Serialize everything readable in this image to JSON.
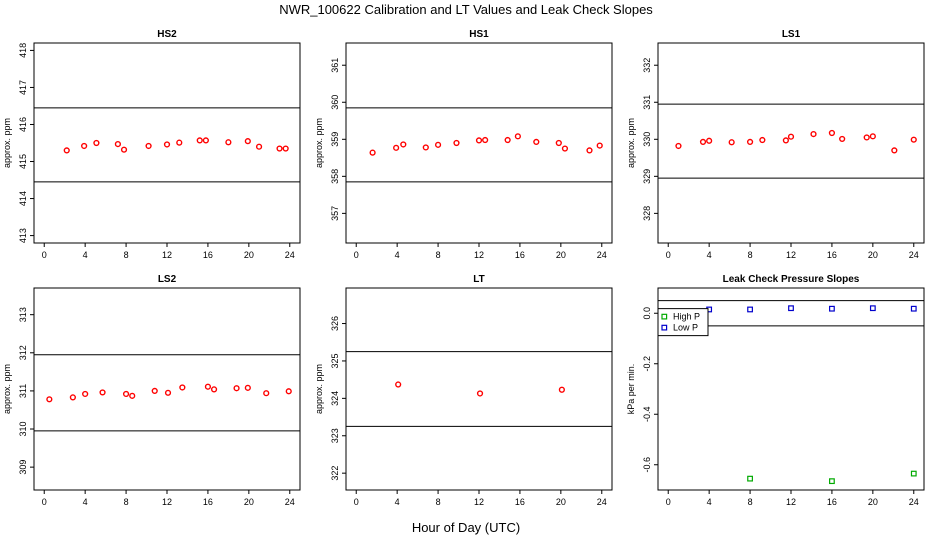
{
  "figure": {
    "title": "NWR_100622  Calibration and LT Values and Leak Check Slopes",
    "xlabel": "Hour of Day (UTC)"
  },
  "chart_data": [
    {
      "type": "scatter",
      "title": "HS2",
      "ylabel": "approx. ppm",
      "xlim": [
        -1,
        25
      ],
      "ylim": [
        412.8,
        418.2
      ],
      "xticks": [
        0,
        4,
        8,
        12,
        16,
        20,
        24
      ],
      "yticks": [
        413,
        414,
        415,
        416,
        417,
        418
      ],
      "hlines": [
        416.45,
        414.45
      ],
      "series": [
        {
          "color": "#ff0000",
          "marker": "circle",
          "x": [
            2.2,
            3.9,
            5.1,
            7.2,
            7.8,
            10.2,
            12.0,
            13.2,
            15.2,
            15.8,
            18.0,
            19.9,
            21.0,
            23.0,
            23.6
          ],
          "y": [
            415.3,
            415.42,
            415.5,
            415.47,
            415.32,
            415.42,
            415.46,
            415.51,
            415.57,
            415.57,
            415.52,
            415.55,
            415.4,
            415.35,
            415.35
          ]
        }
      ]
    },
    {
      "type": "scatter",
      "title": "HS1",
      "ylabel": "approx. ppm",
      "xlim": [
        -1,
        25
      ],
      "ylim": [
        356.2,
        361.6
      ],
      "xticks": [
        0,
        4,
        8,
        12,
        16,
        20,
        24
      ],
      "yticks": [
        357,
        358,
        359,
        360,
        361
      ],
      "hlines": [
        359.85,
        357.85
      ],
      "series": [
        {
          "color": "#ff0000",
          "marker": "circle",
          "x": [
            1.6,
            3.9,
            4.6,
            6.8,
            8.0,
            9.8,
            12.0,
            12.6,
            14.8,
            15.8,
            17.6,
            19.8,
            20.4,
            22.8,
            23.8
          ],
          "y": [
            358.64,
            358.77,
            358.86,
            358.78,
            358.85,
            358.9,
            358.97,
            358.98,
            358.98,
            359.08,
            358.93,
            358.9,
            358.75,
            358.7,
            358.83
          ]
        }
      ]
    },
    {
      "type": "scatter",
      "title": "LS1",
      "ylabel": "approx. ppm",
      "xlim": [
        -1,
        25
      ],
      "ylim": [
        327.2,
        332.6
      ],
      "xticks": [
        0,
        4,
        8,
        12,
        16,
        20,
        24
      ],
      "yticks": [
        328,
        329,
        330,
        331,
        332
      ],
      "hlines": [
        330.95,
        328.95
      ],
      "series": [
        {
          "color": "#ff0000",
          "marker": "circle",
          "x": [
            1.0,
            3.4,
            4.0,
            6.2,
            8.0,
            9.2,
            11.5,
            12.0,
            14.2,
            16.0,
            17.0,
            19.4,
            20.0,
            22.1,
            24.0
          ],
          "y": [
            329.82,
            329.93,
            329.96,
            329.92,
            329.93,
            329.98,
            329.97,
            330.07,
            330.14,
            330.17,
            330.01,
            330.05,
            330.08,
            329.7,
            329.99
          ]
        }
      ]
    },
    {
      "type": "scatter",
      "title": "LS2",
      "ylabel": "approx. ppm",
      "xlim": [
        -1,
        25
      ],
      "ylim": [
        308.4,
        313.7
      ],
      "xticks": [
        0,
        4,
        8,
        12,
        16,
        20,
        24
      ],
      "yticks": [
        309,
        310,
        311,
        312,
        313
      ],
      "hlines": [
        311.95,
        309.95
      ],
      "series": [
        {
          "color": "#ff0000",
          "marker": "circle",
          "x": [
            0.5,
            2.8,
            4.0,
            5.7,
            8.0,
            8.6,
            10.8,
            12.1,
            13.5,
            16.0,
            16.6,
            18.8,
            19.9,
            21.7,
            23.9
          ],
          "y": [
            310.78,
            310.83,
            310.92,
            310.96,
            310.92,
            310.87,
            311.0,
            310.95,
            311.09,
            311.11,
            311.04,
            311.07,
            311.08,
            310.94,
            310.99
          ]
        }
      ]
    },
    {
      "type": "scatter",
      "title": "LT",
      "ylabel": "approx. ppm",
      "xlim": [
        -1,
        25
      ],
      "ylim": [
        321.55,
        326.95
      ],
      "xticks": [
        0,
        4,
        8,
        12,
        16,
        20,
        24
      ],
      "yticks": [
        322,
        323,
        324,
        325,
        326
      ],
      "hlines": [
        325.25,
        323.25
      ],
      "series": [
        {
          "color": "#ff0000",
          "marker": "circle",
          "x": [
            4.1,
            12.1,
            20.1
          ],
          "y": [
            324.37,
            324.13,
            324.23
          ]
        }
      ]
    },
    {
      "type": "scatter",
      "title": "Leak Check Pressure Slopes",
      "ylabel": "kPa per min.",
      "xlim": [
        -1,
        25
      ],
      "ylim": [
        -0.7,
        0.1
      ],
      "xticks": [
        0,
        4,
        8,
        12,
        16,
        20,
        24
      ],
      "yticks": [
        -0.6,
        -0.4,
        -0.2,
        0.0
      ],
      "ytick_labels": [
        "-0.6",
        "-0.4",
        "-0.2",
        "0.0"
      ],
      "hlines": [
        0.05,
        -0.05
      ],
      "legend": {
        "placement": "top-left",
        "entries": [
          {
            "label": "High P",
            "color": "#00aa00"
          },
          {
            "label": "Low P",
            "color": "#0000cc"
          }
        ]
      },
      "series": [
        {
          "name": "High P",
          "color": "#00aa00",
          "marker": "square",
          "x": [
            8.0,
            16.0,
            24.0
          ],
          "y": [
            -0.655,
            -0.665,
            -0.635
          ]
        },
        {
          "name": "Low P",
          "color": "#0000cc",
          "marker": "square",
          "x": [
            4.0,
            8.0,
            12.0,
            16.0,
            20.0,
            24.0
          ],
          "y": [
            0.015,
            0.015,
            0.02,
            0.018,
            0.02,
            0.018
          ]
        }
      ]
    }
  ]
}
